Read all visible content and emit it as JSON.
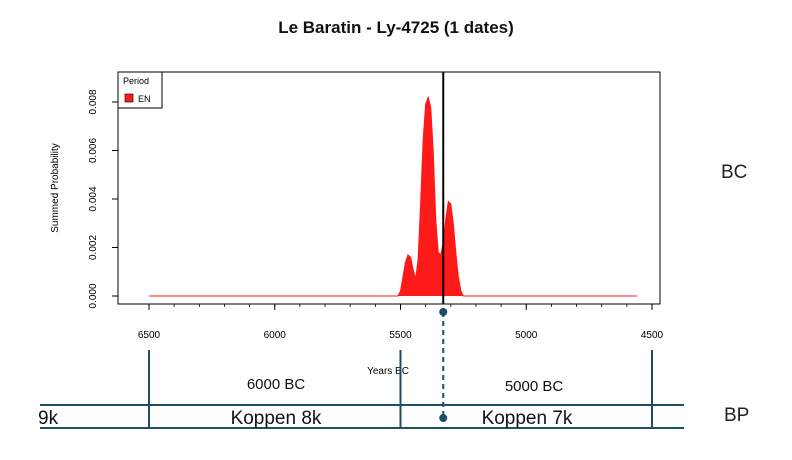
{
  "side_labels": {
    "bc": "BC",
    "bp": "BP"
  },
  "timeline": {
    "era_labels": [
      "6000 BC",
      "5000 BC"
    ],
    "periods": [
      "9k",
      "Koppen 8k",
      "Koppen 7k"
    ]
  },
  "chart_data": {
    "type": "area",
    "title": "Le Baratin - Ly-4725 (1 dates)",
    "xlabel": "Years BC",
    "ylabel": "Summed Probability",
    "xlim": [
      6550,
      4450
    ],
    "ylim": [
      0,
      0.0085
    ],
    "x_ticks": [
      6500,
      6000,
      5500,
      5000,
      4500
    ],
    "y_ticks": [
      "0.000",
      "0.002",
      "0.004",
      "0.006",
      "0.008"
    ],
    "legend": {
      "title": "Period",
      "entries": [
        "EN"
      ],
      "placement": "top-left"
    },
    "colors": {
      "series": "#ff1a1a",
      "marker": "#000000",
      "timeline": "#1c4f63"
    },
    "series": [
      {
        "name": "EN",
        "x": [
          6500,
          5510,
          5500,
          5490,
          5480,
          5470,
          5460,
          5450,
          5440,
          5430,
          5420,
          5410,
          5400,
          5390,
          5380,
          5370,
          5360,
          5350,
          5340,
          5330,
          5320,
          5310,
          5300,
          5290,
          5280,
          5270,
          5260,
          5250,
          5240,
          5230,
          5220,
          5210,
          5200,
          4560
        ],
        "values": [
          0,
          0,
          0.0002,
          0.0008,
          0.0014,
          0.0017,
          0.0016,
          0.0011,
          0.0007,
          0.0015,
          0.0038,
          0.0064,
          0.0079,
          0.0082,
          0.0078,
          0.006,
          0.0032,
          0.0018,
          0.0017,
          0.0022,
          0.0032,
          0.0039,
          0.0038,
          0.003,
          0.0018,
          0.0008,
          0.0002,
          0,
          0,
          0,
          0,
          0,
          0,
          0
        ]
      }
    ],
    "vertical_marker_x": 5330
  }
}
